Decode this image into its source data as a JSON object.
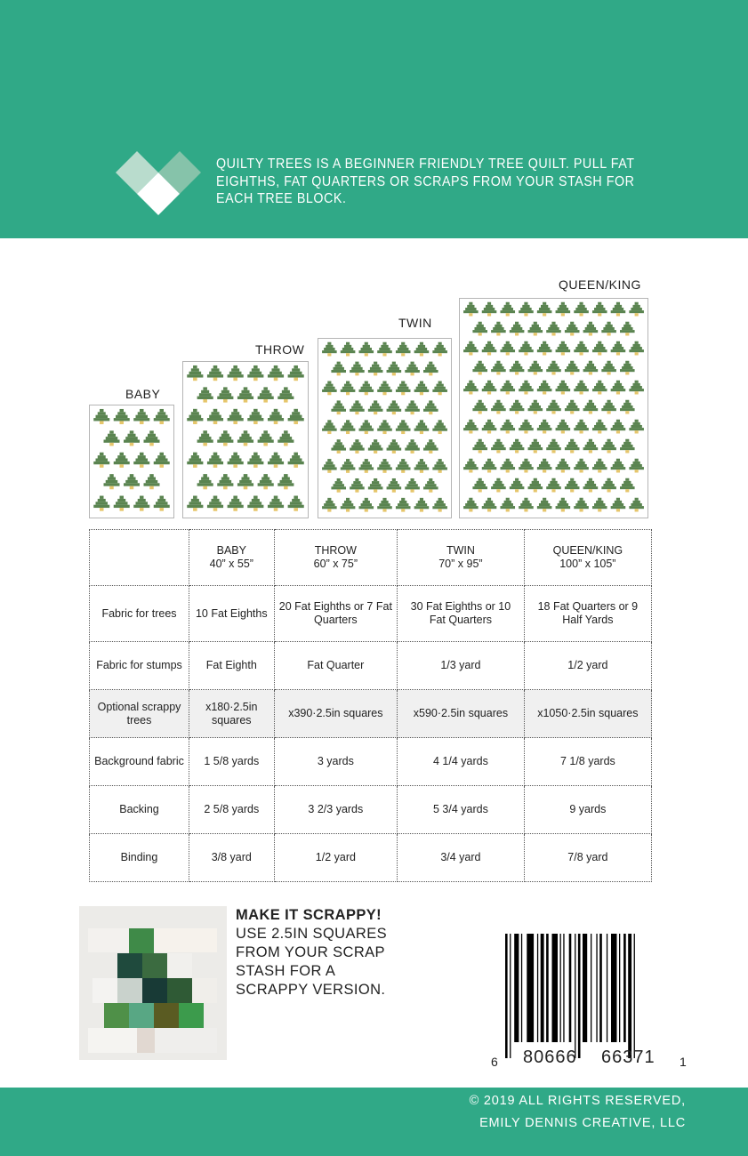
{
  "header": {
    "intro_text": "QUILTY TREES IS A BEGINNER FRIENDLY TREE QUILT.  PULL FAT EIGHTHS, FAT QUARTERS OR SCRAPS FROM YOUR STASH FOR EACH TREE BLOCK.",
    "brand_color": "#30a987"
  },
  "quilts": [
    {
      "label": "BABY",
      "rows": 5,
      "wide_row": 4
    },
    {
      "label": "THROW",
      "rows": 7,
      "wide_row": 6
    },
    {
      "label": "TWIN",
      "rows": 9,
      "wide_row": 7
    },
    {
      "label": "QUEEN/KING",
      "rows": 11,
      "wide_row": 10
    }
  ],
  "tree_colors": {
    "tree": "#5a8450",
    "stump": "#e6c66b"
  },
  "table": {
    "sizes": [
      {
        "name": "BABY",
        "dims": "40” x 55”"
      },
      {
        "name": "THROW",
        "dims": "60” x 75”"
      },
      {
        "name": "TWIN",
        "dims": "70” x 95”"
      },
      {
        "name": "QUEEN/KING",
        "dims": "100” x 105”"
      }
    ],
    "rows": [
      {
        "label": "Fabric for trees",
        "values": [
          "10 Fat Eighths",
          "20 Fat Eighths or 7 Fat Quarters",
          "30 Fat Eighths or 10 Fat Quarters",
          "18 Fat Quarters or 9 Half Yards"
        ]
      },
      {
        "label": "Fabric for stumps",
        "values": [
          "Fat Eighth",
          "Fat Quarter",
          "1/3 yard",
          "1/2 yard"
        ]
      },
      {
        "label": "Optional scrappy trees",
        "values": [
          "x180·2.5in squares",
          "x390·2.5in squares",
          "x590·2.5in squares",
          "x1050·2.5in squares"
        ]
      },
      {
        "label": "Background fabric",
        "values": [
          "1 5/8 yards",
          "3 yards",
          "4 1/4 yards",
          "7 1/8 yards"
        ]
      },
      {
        "label": "Backing",
        "values": [
          "2 5/8 yards",
          "3 2/3 yards",
          "5 3/4 yards",
          "9 yards"
        ]
      },
      {
        "label": "Binding",
        "values": [
          "3/8 yard",
          "1/2 yard",
          "3/4 yard",
          "7/8 yard"
        ]
      }
    ]
  },
  "scrappy": {
    "title": "MAKE IT SCRAPPY!",
    "lines": [
      "USE 2.5IN SQUARES",
      "FROM YOUR SCRAP",
      "STASH FOR A",
      "SCRAPPY VERSION."
    ]
  },
  "barcode": {
    "left": "6",
    "group1": "80666",
    "group2": "66371",
    "right": "1"
  },
  "footer": {
    "line1": "© 2019 ALL RIGHTS RESERVED,",
    "line2": "EMILY DENNIS CREATIVE, LLC"
  }
}
